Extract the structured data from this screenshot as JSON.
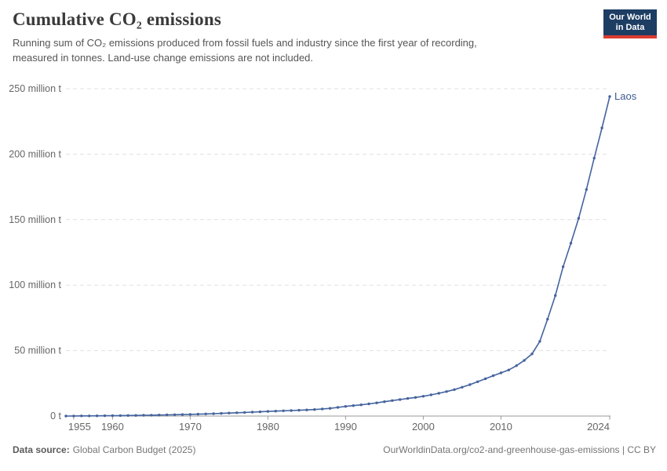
{
  "header": {
    "title": "Cumulative CO₂ emissions",
    "subtitle_lines": [
      "Running sum of CO₂ emissions produced from fossil fuels and industry since the first year of recording,",
      "measured in tonnes. Land-use change emissions are not included."
    ]
  },
  "logo": {
    "line1": "Our World",
    "line2": "in Data"
  },
  "chart_data": {
    "type": "line",
    "title": "Cumulative CO₂ emissions",
    "unit": "tonnes",
    "value_scale": "million tonnes",
    "xlim": [
      1954,
      2024
    ],
    "ylim": [
      0,
      250
    ],
    "grid": "horizontal-dashed",
    "x_ticks": [
      {
        "year": 1955,
        "label": "1955"
      },
      {
        "year": 1960,
        "label": "1960"
      },
      {
        "year": 1970,
        "label": "1970"
      },
      {
        "year": 1980,
        "label": "1980"
      },
      {
        "year": 1990,
        "label": "1990"
      },
      {
        "year": 2000,
        "label": "2000"
      },
      {
        "year": 2010,
        "label": "2010"
      },
      {
        "year": 2024,
        "label": "2024"
      }
    ],
    "y_ticks": [
      {
        "value": 0,
        "label": "0 t"
      },
      {
        "value": 50,
        "label": "50 million t"
      },
      {
        "value": 100,
        "label": "100 million t"
      },
      {
        "value": 150,
        "label": "150 million t"
      },
      {
        "value": 200,
        "label": "200 million t"
      },
      {
        "value": 250,
        "label": "250 million t"
      }
    ],
    "x": [
      1954,
      1955,
      1956,
      1957,
      1958,
      1959,
      1960,
      1961,
      1962,
      1963,
      1964,
      1965,
      1966,
      1967,
      1968,
      1969,
      1970,
      1971,
      1972,
      1973,
      1974,
      1975,
      1976,
      1977,
      1978,
      1979,
      1980,
      1981,
      1982,
      1983,
      1984,
      1985,
      1986,
      1987,
      1988,
      1989,
      1990,
      1991,
      1992,
      1993,
      1994,
      1995,
      1996,
      1997,
      1998,
      1999,
      2000,
      2001,
      2002,
      2003,
      2004,
      2005,
      2006,
      2007,
      2008,
      2009,
      2010,
      2011,
      2012,
      2013,
      2014,
      2015,
      2016,
      2017,
      2018,
      2019,
      2020,
      2021,
      2022,
      2023,
      2024
    ],
    "series": [
      {
        "name": "Laos",
        "unit": "million t",
        "values": [
          0.02,
          0.05,
          0.09,
          0.13,
          0.18,
          0.23,
          0.29,
          0.35,
          0.42,
          0.5,
          0.58,
          0.67,
          0.77,
          0.88,
          1.0,
          1.12,
          1.26,
          1.42,
          1.6,
          1.8,
          2.02,
          2.26,
          2.5,
          2.74,
          2.98,
          3.25,
          3.55,
          3.8,
          4.0,
          4.2,
          4.45,
          4.7,
          5.0,
          5.4,
          5.9,
          6.6,
          7.4,
          8.0,
          8.6,
          9.3,
          10.1,
          11.0,
          11.8,
          12.6,
          13.4,
          14.2,
          15.1,
          16.2,
          17.4,
          18.7,
          20.2,
          22.0,
          24.0,
          26.2,
          28.5,
          30.8,
          33.0,
          35.2,
          38.5,
          42.5,
          47.5,
          57.0,
          74.0,
          92.0,
          114.0,
          132.0,
          151.0,
          173.0,
          197.0,
          220.0,
          244.0
        ]
      }
    ],
    "colors": {
      "line": "#44639e",
      "end_label": "#3d5a8f",
      "gridline": "#e0e0e0",
      "axis": "#999999",
      "axis_text": "#666666"
    },
    "legend_position": "end-of-line-label"
  },
  "footer": {
    "source_label": "Data source:",
    "source_value": "Global Carbon Budget (2025)",
    "link": "OurWorldinData.org/co2-and-greenhouse-gas-emissions | CC BY"
  }
}
